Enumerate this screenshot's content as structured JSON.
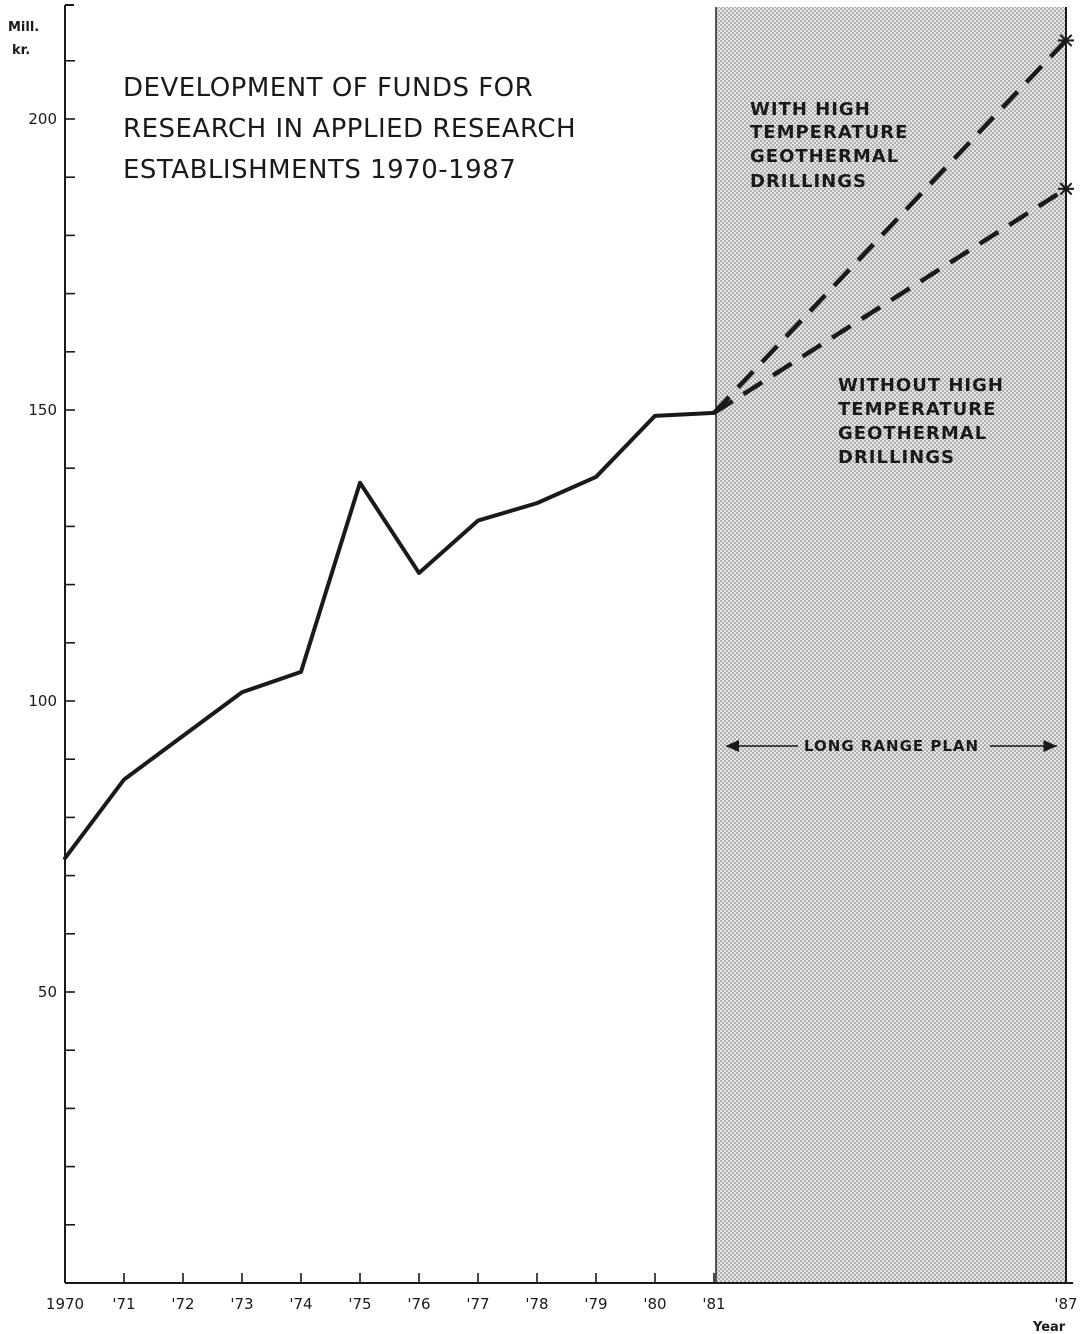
{
  "chart_data": {
    "type": "line",
    "title_lines": [
      "DEVELOPMENT OF FUNDS FOR",
      "RESEARCH IN APPLIED RESEARCH",
      "ESTABLISHMENTS 1970-1987"
    ],
    "y_unit_lines": [
      "Mill.",
      "kr."
    ],
    "xlabel": "Year",
    "x_ticks": [
      {
        "x": 1970,
        "label": "1970"
      },
      {
        "x": 1971,
        "label": "'71"
      },
      {
        "x": 1972,
        "label": "'72"
      },
      {
        "x": 1973,
        "label": "'73"
      },
      {
        "x": 1974,
        "label": "'74"
      },
      {
        "x": 1975,
        "label": "'75"
      },
      {
        "x": 1976,
        "label": "'76"
      },
      {
        "x": 1977,
        "label": "'77"
      },
      {
        "x": 1978,
        "label": "'78"
      },
      {
        "x": 1979,
        "label": "'79"
      },
      {
        "x": 1980,
        "label": "'80"
      },
      {
        "x": 1981,
        "label": "'81"
      },
      {
        "x": 1987,
        "label": "'87"
      }
    ],
    "y_ticks": [
      10,
      20,
      30,
      40,
      50,
      60,
      70,
      80,
      90,
      100,
      110,
      120,
      130,
      140,
      150,
      160,
      170,
      180,
      190,
      200,
      210
    ],
    "y_tick_labels": [
      {
        "y": 50,
        "label": "50"
      },
      {
        "y": 100,
        "label": "100"
      },
      {
        "y": 150,
        "label": "150"
      },
      {
        "y": 200,
        "label": "200"
      }
    ],
    "xlim": [
      1970,
      1987.1
    ],
    "ylim": [
      0,
      220
    ],
    "series": [
      {
        "style": "solid",
        "points": [
          [
            1970,
            73
          ],
          [
            1971,
            86.5
          ],
          [
            1972,
            94
          ],
          [
            1973,
            101.5
          ],
          [
            1974,
            105
          ],
          [
            1975,
            137.5
          ],
          [
            1976,
            122
          ],
          [
            1977,
            131
          ],
          [
            1978,
            134
          ],
          [
            1979,
            138.5
          ],
          [
            1980,
            149
          ],
          [
            1981,
            149.5
          ]
        ]
      },
      {
        "style": "dashed",
        "marker": "star",
        "points": [
          [
            1981,
            149.5
          ],
          [
            1987,
            213.5
          ]
        ]
      },
      {
        "style": "dashed",
        "marker": "star",
        "points": [
          [
            1981,
            149.5
          ],
          [
            1987,
            188
          ]
        ]
      }
    ],
    "shaded_region": {
      "x": [
        1981,
        1987
      ]
    },
    "annotations": [
      {
        "lines": [
          "WITH HIGH",
          "TEMPERATURE",
          "GEOTHERMAL",
          "DRILLINGS"
        ]
      },
      {
        "lines": [
          "WITHOUT HIGH",
          "TEMPERATURE",
          "GEOTHERMAL",
          "DRILLINGS"
        ]
      }
    ],
    "range_label": "LONG RANGE PLAN",
    "colors": {
      "line": "#1a1a1a",
      "shade": "#d4d4d4",
      "background": "#ffffff"
    }
  }
}
